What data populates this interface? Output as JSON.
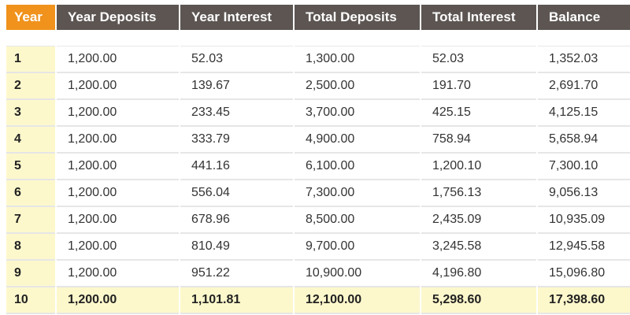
{
  "table": {
    "headers": [
      "Year",
      "Year Deposits",
      "Year Interest",
      "Total Deposits",
      "Total Interest",
      "Balance"
    ],
    "rows": [
      [
        "1",
        "1,200.00",
        "52.03",
        "1,300.00",
        "52.03",
        "1,352.03"
      ],
      [
        "2",
        "1,200.00",
        "139.67",
        "2,500.00",
        "191.70",
        "2,691.70"
      ],
      [
        "3",
        "1,200.00",
        "233.45",
        "3,700.00",
        "425.15",
        "4,125.15"
      ],
      [
        "4",
        "1,200.00",
        "333.79",
        "4,900.00",
        "758.94",
        "5,658.94"
      ],
      [
        "5",
        "1,200.00",
        "441.16",
        "6,100.00",
        "1,200.10",
        "7,300.10"
      ],
      [
        "6",
        "1,200.00",
        "556.04",
        "7,300.00",
        "1,756.13",
        "9,056.13"
      ],
      [
        "7",
        "1,200.00",
        "678.96",
        "8,500.00",
        "2,435.09",
        "10,935.09"
      ],
      [
        "8",
        "1,200.00",
        "810.49",
        "9,700.00",
        "3,245.58",
        "12,945.58"
      ],
      [
        "9",
        "1,200.00",
        "951.22",
        "10,900.00",
        "4,196.80",
        "15,096.80"
      ],
      [
        "10",
        "1,200.00",
        "1,101.81",
        "12,100.00",
        "5,298.60",
        "17,398.60"
      ]
    ]
  },
  "colors": {
    "year_header": "#f0921c",
    "header": "#5c5552",
    "highlight": "#fdf8cc"
  }
}
